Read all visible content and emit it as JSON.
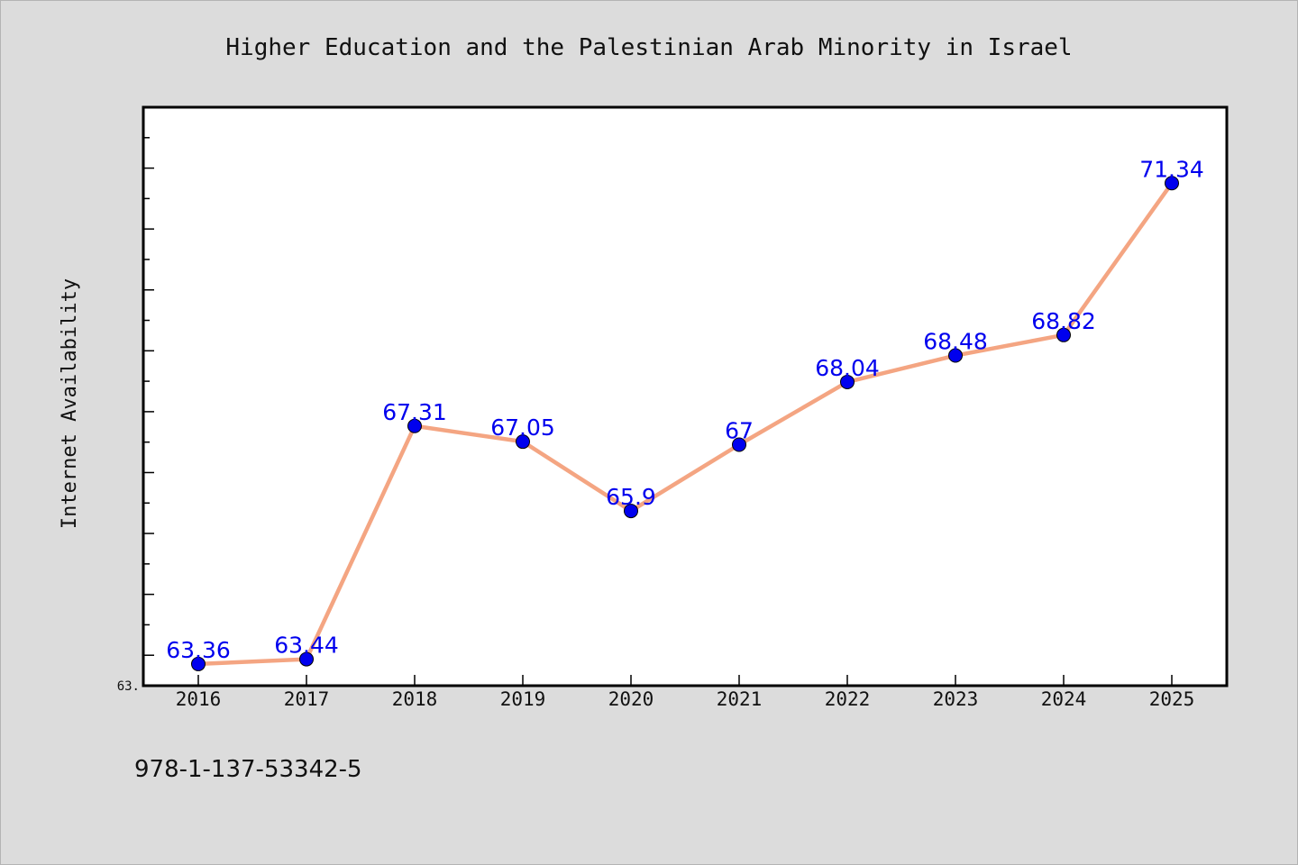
{
  "chart_data": {
    "type": "line",
    "title": "Higher Education and the Palestinian Arab Minority in Israel",
    "ylabel": "Internet Availability",
    "y_min_label": "63.",
    "ylim": [
      63.0,
      72.6
    ],
    "grid": false,
    "x": [
      "2016",
      "2017",
      "2018",
      "2019",
      "2020",
      "2021",
      "2022",
      "2023",
      "2024",
      "2025"
    ],
    "series": [
      {
        "values": [
          63.36,
          63.44,
          67.31,
          67.05,
          65.9,
          67.0,
          68.04,
          68.48,
          68.82,
          71.34
        ],
        "labels": [
          "63.36",
          "63.44",
          "67.31",
          "67.05",
          "65.9",
          "67",
          "68.04",
          "68.48",
          "68.82",
          "71.34"
        ]
      }
    ],
    "line_color": "#f4a582",
    "marker_color": "#0000ee",
    "label_color": "#0000ee"
  },
  "footer": {
    "isbn": "978-1-137-53342-5"
  }
}
